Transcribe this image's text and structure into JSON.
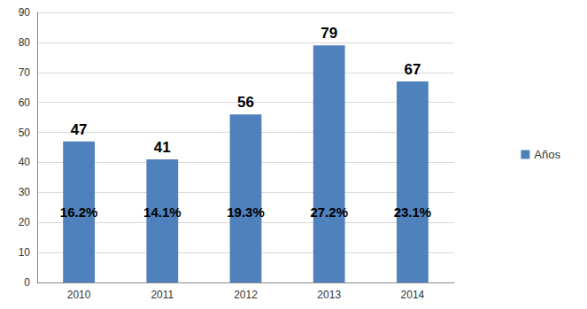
{
  "chart_data": {
    "type": "bar",
    "categories": [
      "2010",
      "2011",
      "2012",
      "2013",
      "2014"
    ],
    "series": [
      {
        "name": "Años",
        "color": "#4f81bd",
        "values": [
          47,
          41,
          56,
          79,
          67
        ]
      }
    ],
    "annotations": [
      "16.2%",
      "14.1%",
      "19.3%",
      "27.2%",
      "23.1%"
    ],
    "ylim": [
      0,
      90
    ],
    "yticks": [
      0,
      10,
      20,
      30,
      40,
      50,
      60,
      70,
      80,
      90
    ],
    "grid": true,
    "legend": "right",
    "data_labels": true
  }
}
